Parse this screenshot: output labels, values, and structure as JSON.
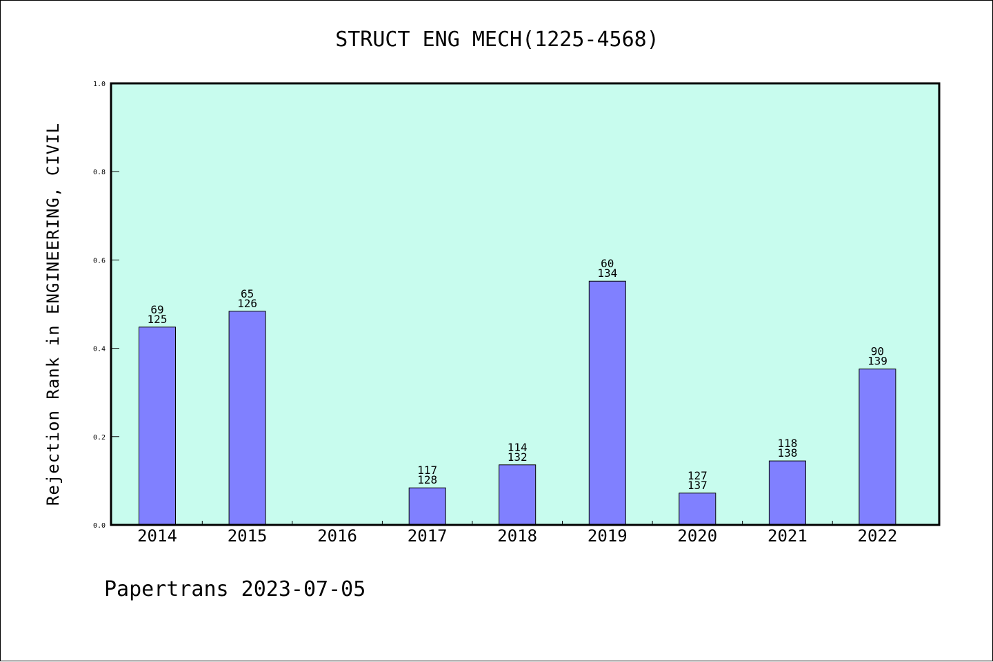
{
  "chart_data": {
    "type": "bar",
    "title": "STRUCT ENG MECH(1225-4568)",
    "xlabel": "",
    "ylabel": "Rejection Rank in ENGINEERING, CIVIL",
    "ylim": [
      0.0,
      1.0
    ],
    "yticks": [
      "0.0",
      "0.2",
      "0.4",
      "0.6",
      "0.8",
      "1.0"
    ],
    "categories": [
      "2014",
      "2015",
      "2016",
      "2017",
      "2018",
      "2019",
      "2020",
      "2021",
      "2022"
    ],
    "values": [
      0.448,
      0.484,
      null,
      0.084,
      0.136,
      0.552,
      0.072,
      0.145,
      0.353
    ],
    "labels_top": [
      "69",
      "65",
      "",
      "117",
      "114",
      "60",
      "127",
      "118",
      "90"
    ],
    "labels_bottom": [
      "125",
      "126",
      "",
      "128",
      "132",
      "134",
      "137",
      "138",
      "139"
    ],
    "grid": false,
    "colors": {
      "plot_background": "#c8fcee",
      "bar_fill": "#8080ff",
      "bar_stroke": "#000000"
    }
  },
  "footer": "Papertrans 2023-07-05"
}
